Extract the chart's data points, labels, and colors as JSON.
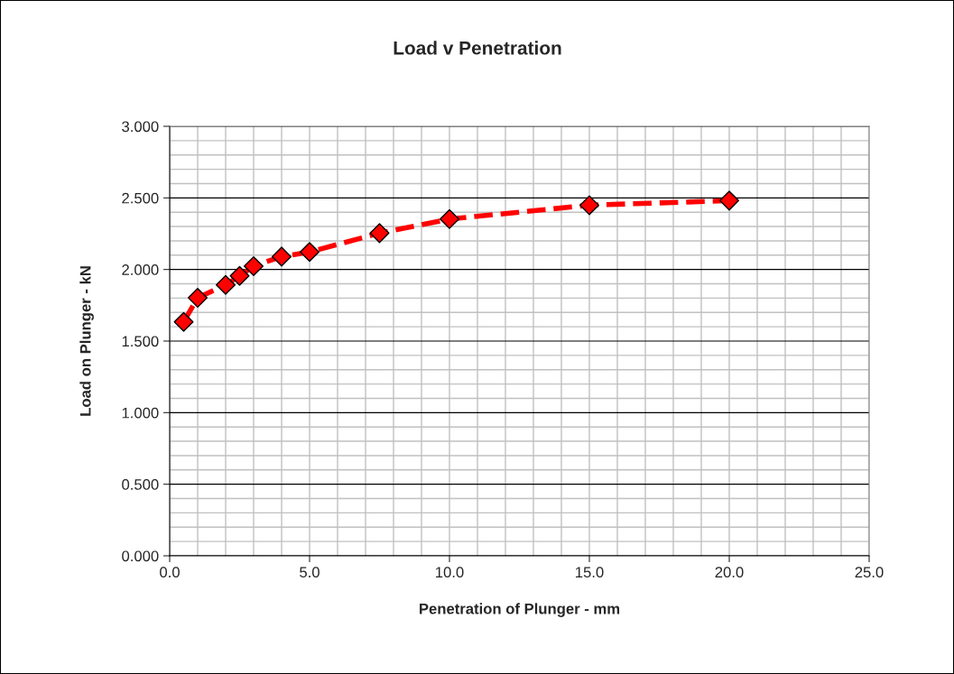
{
  "chart_data": {
    "type": "line",
    "title": "Load v Penetration",
    "xlabel": "Penetration of Plunger - mm",
    "ylabel": "Load on Plunger - kN",
    "x": [
      0.5,
      1,
      2,
      2.5,
      3,
      4,
      5,
      7.5,
      10,
      15,
      20
    ],
    "series": [
      {
        "color": "#ff0000",
        "values": [
          1.634,
          1.802,
          1.892,
          1.955,
          2.023,
          2.09,
          2.122,
          2.254,
          2.352,
          2.449,
          2.481
        ]
      }
    ],
    "marker": "diamond",
    "line_style": "dashed",
    "grid": true,
    "xlim": [
      0,
      25
    ],
    "xticks": [
      {
        "value": 0,
        "label": "0.0"
      },
      {
        "value": 5,
        "label": "5.0"
      },
      {
        "value": 10,
        "label": "10.0"
      },
      {
        "value": 15,
        "label": "15.0"
      },
      {
        "value": 20,
        "label": "20.0"
      },
      {
        "value": 25,
        "label": "25.0"
      }
    ],
    "ylim": [
      0,
      3
    ],
    "yticks": [
      {
        "value": 0,
        "label": "0.000"
      },
      {
        "value": 0.5,
        "label": "0.500"
      },
      {
        "value": 1,
        "label": "1.000"
      },
      {
        "value": 1.5,
        "label": "1.500"
      },
      {
        "value": 2,
        "label": "2.000"
      },
      {
        "value": 2.5,
        "label": "2.500"
      },
      {
        "value": 3,
        "label": "3.000"
      }
    ]
  }
}
